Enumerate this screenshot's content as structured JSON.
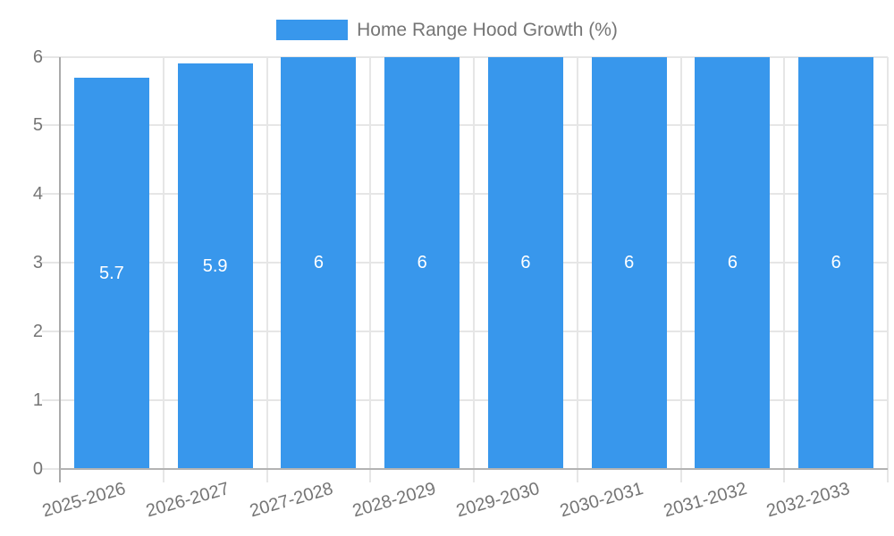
{
  "legend": {
    "label": "Home Range Hood Growth (%)"
  },
  "chart_data": {
    "type": "bar",
    "title": "Home Range Hood Growth (%)",
    "categories": [
      "2025-2026",
      "2026-2027",
      "2027-2028",
      "2028-2029",
      "2029-2030",
      "2030-2031",
      "2031-2032",
      "2032-2033"
    ],
    "series": [
      {
        "name": "Home Range Hood Growth (%)",
        "values": [
          5.7,
          5.9,
          6,
          6,
          6,
          6,
          6,
          6
        ]
      }
    ],
    "bar_value_labels": [
      "5.7",
      "5.9",
      "6",
      "6",
      "6",
      "6",
      "6",
      "6"
    ],
    "xlabel": "",
    "ylabel": "",
    "ylim": [
      0,
      6
    ],
    "yticks": [
      "0",
      "1",
      "2",
      "3",
      "4",
      "5",
      "6"
    ],
    "grid": true,
    "legend_position": "top-center",
    "colors": {
      "bar": "#3897EC",
      "bar_value_label": "#FFFFFF",
      "tick_text": "#757575",
      "gridline": "#E6E6E6",
      "y_axis_line": "#AAAAAA",
      "x_axis_line": "#B3B3B3",
      "background": "#FFFFFF"
    }
  }
}
